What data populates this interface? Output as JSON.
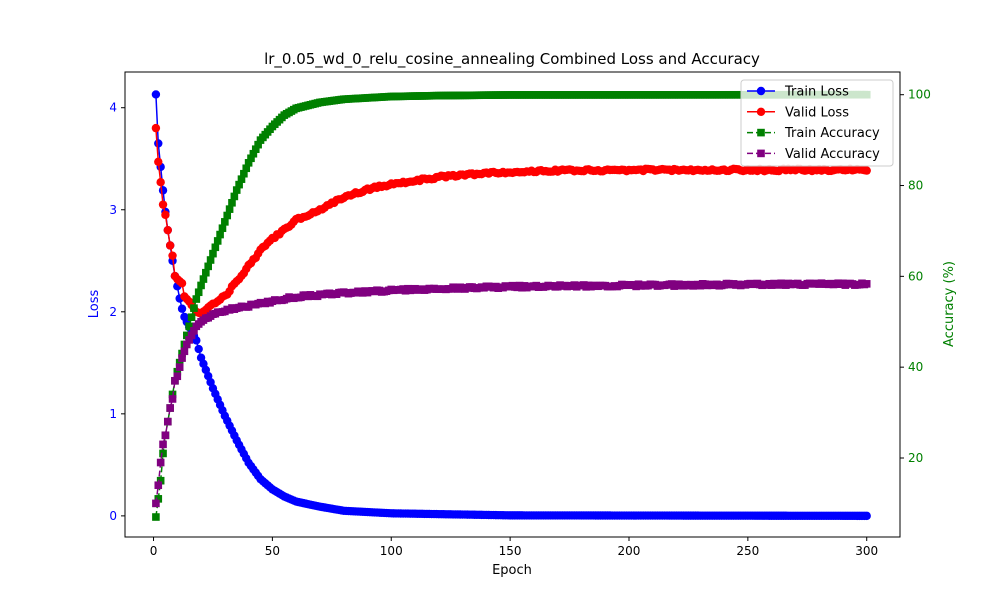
{
  "chart_data": {
    "type": "line",
    "title": "lr_0.05_wd_0_relu_cosine_annealing Combined Loss and Accuracy",
    "xlabel": "Epoch",
    "ylabel_left": "Loss",
    "ylabel_right": "Accuracy (%)",
    "xlim": [
      -12,
      314
    ],
    "ylim_left": [
      -0.207,
      4.35
    ],
    "ylim_right": [
      2.6,
      105.0
    ],
    "x_ticks": [
      0,
      50,
      100,
      150,
      200,
      250,
      300
    ],
    "y_ticks_left": [
      0,
      1,
      2,
      3,
      4
    ],
    "y_ticks_right": [
      20,
      40,
      60,
      80,
      100
    ],
    "grid": false,
    "legend_position": "top-right",
    "colors": {
      "left_axis": "#0000ff",
      "right_axis": "#008000"
    },
    "series": [
      {
        "name": "Train Loss",
        "axis": "left",
        "color": "#0000ff",
        "marker": "circle",
        "linestyle": "solid",
        "epochs": 300,
        "keypoints": [
          [
            1,
            4.13
          ],
          [
            2,
            3.65
          ],
          [
            3,
            3.42
          ],
          [
            4,
            3.19
          ],
          [
            5,
            2.98
          ],
          [
            6,
            2.8
          ],
          [
            7,
            2.65
          ],
          [
            8,
            2.5
          ],
          [
            9,
            2.35
          ],
          [
            10,
            2.25
          ],
          [
            11,
            2.13
          ],
          [
            12,
            2.03
          ],
          [
            13,
            1.95
          ],
          [
            15,
            1.85
          ],
          [
            18,
            1.72
          ],
          [
            20,
            1.55
          ],
          [
            25,
            1.25
          ],
          [
            30,
            0.98
          ],
          [
            35,
            0.74
          ],
          [
            40,
            0.52
          ],
          [
            45,
            0.36
          ],
          [
            50,
            0.26
          ],
          [
            55,
            0.19
          ],
          [
            60,
            0.14
          ],
          [
            70,
            0.09
          ],
          [
            80,
            0.05
          ],
          [
            100,
            0.025
          ],
          [
            150,
            0.005
          ],
          [
            300,
            0.0
          ]
        ]
      },
      {
        "name": "Valid Loss",
        "axis": "left",
        "color": "#ff0000",
        "marker": "circle",
        "linestyle": "solid",
        "epochs": 300,
        "keypoints": [
          [
            1,
            3.8
          ],
          [
            2,
            3.47
          ],
          [
            3,
            3.27
          ],
          [
            4,
            3.05
          ],
          [
            5,
            2.95
          ],
          [
            6,
            2.8
          ],
          [
            7,
            2.65
          ],
          [
            8,
            2.55
          ],
          [
            9,
            2.35
          ],
          [
            10,
            2.32
          ],
          [
            11,
            2.3
          ],
          [
            12,
            2.28
          ],
          [
            13,
            2.15
          ],
          [
            15,
            2.1
          ],
          [
            18,
            2.0
          ],
          [
            20,
            1.98
          ],
          [
            25,
            2.08
          ],
          [
            30,
            2.15
          ],
          [
            35,
            2.3
          ],
          [
            40,
            2.45
          ],
          [
            45,
            2.6
          ],
          [
            50,
            2.72
          ],
          [
            55,
            2.8
          ],
          [
            60,
            2.9
          ],
          [
            70,
            3.0
          ],
          [
            80,
            3.12
          ],
          [
            90,
            3.2
          ],
          [
            100,
            3.25
          ],
          [
            120,
            3.32
          ],
          [
            140,
            3.36
          ],
          [
            160,
            3.38
          ],
          [
            200,
            3.39
          ],
          [
            300,
            3.39
          ]
        ],
        "noise": 0.012
      },
      {
        "name": "Train Accuracy",
        "axis": "right",
        "color": "#008000",
        "marker": "square",
        "linestyle": "dashed",
        "epochs": 300,
        "keypoints": [
          [
            1,
            7
          ],
          [
            2,
            11
          ],
          [
            3,
            15
          ],
          [
            4,
            21
          ],
          [
            5,
            25
          ],
          [
            6,
            28
          ],
          [
            7,
            31
          ],
          [
            8,
            34
          ],
          [
            9,
            37
          ],
          [
            10,
            39
          ],
          [
            12,
            43
          ],
          [
            14,
            47
          ],
          [
            16,
            51
          ],
          [
            18,
            55
          ],
          [
            20,
            58
          ],
          [
            25,
            65
          ],
          [
            30,
            72
          ],
          [
            35,
            79
          ],
          [
            40,
            85
          ],
          [
            45,
            90
          ],
          [
            50,
            93
          ],
          [
            55,
            95.5
          ],
          [
            60,
            97
          ],
          [
            70,
            98.3
          ],
          [
            80,
            99
          ],
          [
            100,
            99.6
          ],
          [
            120,
            99.8
          ],
          [
            150,
            99.95
          ],
          [
            300,
            100
          ]
        ]
      },
      {
        "name": "Valid Accuracy",
        "axis": "right",
        "color": "#800080",
        "marker": "square",
        "linestyle": "dashed",
        "epochs": 300,
        "keypoints": [
          [
            1,
            10
          ],
          [
            2,
            14
          ],
          [
            3,
            19
          ],
          [
            4,
            23
          ],
          [
            5,
            25
          ],
          [
            6,
            28
          ],
          [
            7,
            31
          ],
          [
            8,
            33
          ],
          [
            9,
            37
          ],
          [
            10,
            38
          ],
          [
            12,
            42
          ],
          [
            14,
            45
          ],
          [
            16,
            47
          ],
          [
            18,
            49
          ],
          [
            20,
            50
          ],
          [
            25,
            51.5
          ],
          [
            30,
            52.5
          ],
          [
            40,
            53.5
          ],
          [
            50,
            54.5
          ],
          [
            60,
            55.5
          ],
          [
            80,
            56.3
          ],
          [
            100,
            56.9
          ],
          [
            120,
            57.3
          ],
          [
            150,
            57.7
          ],
          [
            200,
            58.0
          ],
          [
            250,
            58.2
          ],
          [
            300,
            58.3
          ]
        ],
        "noise": 0.25
      }
    ]
  }
}
